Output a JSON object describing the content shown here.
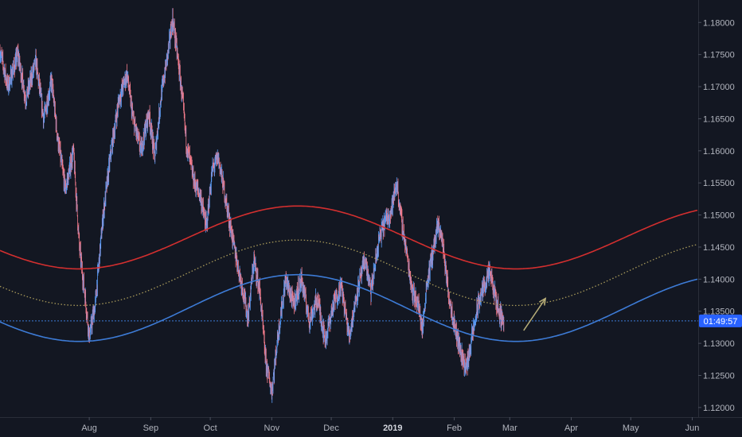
{
  "chart_data": {
    "type": "candlestick",
    "x_ticks": [
      "Aug",
      "Sep",
      "Oct",
      "Nov",
      "Dec",
      "2019",
      "Feb",
      "Mar",
      "Apr",
      "May",
      "Jun"
    ],
    "y_ticks": [
      "1.18000",
      "1.17500",
      "1.17000",
      "1.16500",
      "1.16000",
      "1.15500",
      "1.15000",
      "1.14500",
      "1.14000",
      "1.13500",
      "1.13000",
      "1.12500",
      "1.12000"
    ],
    "ylim": [
      1.1185,
      1.1835
    ],
    "grid": false,
    "price_path": [
      [
        "2018-07-01",
        1.1755
      ],
      [
        "2018-07-05",
        1.17
      ],
      [
        "2018-07-10",
        1.175
      ],
      [
        "2018-07-14",
        1.168
      ],
      [
        "2018-07-19",
        1.174
      ],
      [
        "2018-07-23",
        1.165
      ],
      [
        "2018-07-27",
        1.171
      ],
      [
        "2018-07-30",
        1.162
      ],
      [
        "2018-08-03",
        1.154
      ],
      [
        "2018-08-07",
        1.16
      ],
      [
        "2018-08-10",
        1.145
      ],
      [
        "2018-08-13",
        1.137
      ],
      [
        "2018-08-15",
        1.131
      ],
      [
        "2018-08-18",
        1.136
      ],
      [
        "2018-08-22",
        1.15
      ],
      [
        "2018-08-26",
        1.16
      ],
      [
        "2018-08-30",
        1.168
      ],
      [
        "2018-09-03",
        1.172
      ],
      [
        "2018-09-06",
        1.165
      ],
      [
        "2018-09-10",
        1.16
      ],
      [
        "2018-09-14",
        1.166
      ],
      [
        "2018-09-17",
        1.159
      ],
      [
        "2018-09-20",
        1.168
      ],
      [
        "2018-09-24",
        1.176
      ],
      [
        "2018-09-26",
        1.1805
      ],
      [
        "2018-09-28",
        1.176
      ],
      [
        "2018-10-01",
        1.168
      ],
      [
        "2018-10-03",
        1.161
      ],
      [
        "2018-10-07",
        1.155
      ],
      [
        "2018-10-10",
        1.153
      ],
      [
        "2018-10-13",
        1.148
      ],
      [
        "2018-10-16",
        1.157
      ],
      [
        "2018-10-19",
        1.159
      ],
      [
        "2018-10-23",
        1.152
      ],
      [
        "2018-10-27",
        1.145
      ],
      [
        "2018-10-31",
        1.139
      ],
      [
        "2018-11-03",
        1.134
      ],
      [
        "2018-11-06",
        1.143
      ],
      [
        "2018-11-09",
        1.138
      ],
      [
        "2018-11-12",
        1.127
      ],
      [
        "2018-11-15",
        1.1225
      ],
      [
        "2018-11-18",
        1.131
      ],
      [
        "2018-11-22",
        1.14
      ],
      [
        "2018-11-26",
        1.136
      ],
      [
        "2018-11-30",
        1.14
      ],
      [
        "2018-12-04",
        1.1335
      ],
      [
        "2018-12-08",
        1.137
      ],
      [
        "2018-12-12",
        1.1305
      ],
      [
        "2018-12-16",
        1.136
      ],
      [
        "2018-12-20",
        1.139
      ],
      [
        "2018-12-24",
        1.131
      ],
      [
        "2018-12-28",
        1.138
      ],
      [
        "2019-01-01",
        1.143
      ],
      [
        "2019-01-04",
        1.138
      ],
      [
        "2019-01-08",
        1.146
      ],
      [
        "2019-01-11",
        1.149
      ],
      [
        "2019-01-14",
        1.1505
      ],
      [
        "2019-01-17",
        1.155
      ],
      [
        "2019-01-19",
        1.15
      ],
      [
        "2019-01-22",
        1.144
      ],
      [
        "2019-01-25",
        1.138
      ],
      [
        "2019-01-28",
        1.136
      ],
      [
        "2019-01-30",
        1.132
      ],
      [
        "2019-02-01",
        1.139
      ],
      [
        "2019-02-04",
        1.144
      ],
      [
        "2019-02-07",
        1.1485
      ],
      [
        "2019-02-09",
        1.146
      ],
      [
        "2019-02-12",
        1.138
      ],
      [
        "2019-02-15",
        1.133
      ],
      [
        "2019-02-18",
        1.129
      ],
      [
        "2019-02-21",
        1.126
      ],
      [
        "2019-02-24",
        1.131
      ],
      [
        "2019-02-27",
        1.136
      ],
      [
        "2019-03-02",
        1.139
      ],
      [
        "2019-03-05",
        1.141
      ],
      [
        "2019-03-07",
        1.138
      ],
      [
        "2019-03-10",
        1.1345
      ],
      [
        "2019-03-12",
        1.1335
      ]
    ],
    "current_price": 1.1335,
    "price_tag_text": "01:49:57",
    "cycle_lines": [
      {
        "style": "solid",
        "color": "#d32f2f",
        "base": 1.1465,
        "amplitude": 0.0049
      },
      {
        "style": "dotted",
        "color": "#a89a5a",
        "base": 1.141,
        "amplitude": 0.0051
      },
      {
        "style": "solid",
        "color": "#3d7bd6",
        "base": 1.1355,
        "amplitude": 0.0052
      }
    ],
    "cycle_start": "2018-08-10",
    "cycle_period_days": 220,
    "arrow": {
      "from": [
        "2019-03-22",
        1.132
      ],
      "to": [
        "2019-04-02",
        1.137
      ]
    },
    "colors": {
      "background": "#131722",
      "up_candle": "#5b9cf6",
      "down_candle": "#f07a8a",
      "arrow": "#b7ad78",
      "price_line": "#3d7bd6"
    }
  },
  "axis": {
    "time_ticks": [
      {
        "label": "Aug",
        "date": "2018-08-15"
      },
      {
        "label": "Sep",
        "date": "2018-09-15"
      },
      {
        "label": "Oct",
        "date": "2018-10-15"
      },
      {
        "label": "Nov",
        "date": "2018-11-15"
      },
      {
        "label": "Dec",
        "date": "2018-12-15"
      },
      {
        "label": "2019",
        "date": "2019-01-15"
      },
      {
        "label": "Feb",
        "date": "2019-02-15"
      },
      {
        "label": "Mar",
        "date": "2019-03-15"
      },
      {
        "label": "Apr",
        "date": "2019-04-15"
      },
      {
        "label": "May",
        "date": "2019-05-15"
      },
      {
        "label": "Jun",
        "date": "2019-06-15"
      }
    ],
    "time_range": [
      "2018-07-01",
      "2019-06-18"
    ]
  }
}
